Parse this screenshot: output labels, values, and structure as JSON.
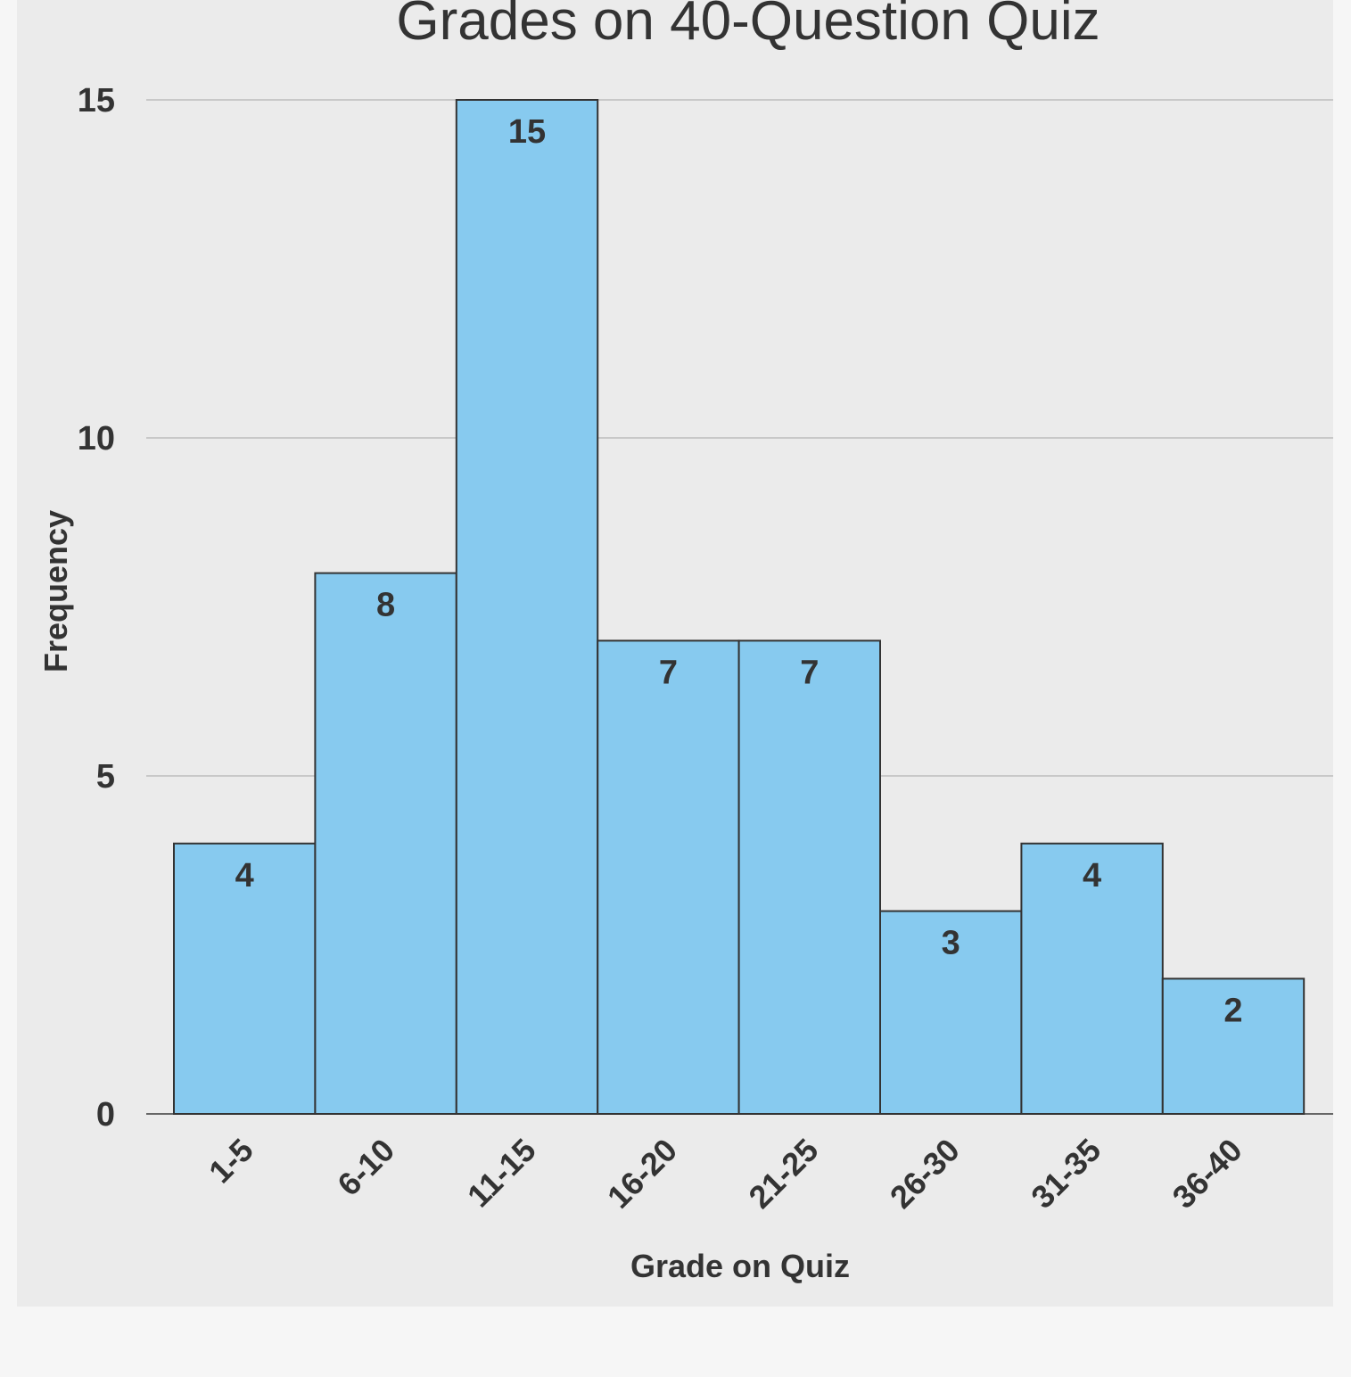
{
  "chart_data": {
    "type": "bar",
    "title": "Grades on 40-Question Quiz",
    "xlabel": "Grade on Quiz",
    "ylabel": "Frequency",
    "categories": [
      "1-5",
      "6-10",
      "11-15",
      "16-20",
      "21-25",
      "26-30",
      "31-35",
      "36-40"
    ],
    "values": [
      4,
      8,
      15,
      7,
      7,
      3,
      4,
      2
    ],
    "ylim": [
      0,
      15
    ],
    "yticks": [
      0,
      5,
      10,
      15
    ],
    "grid": true,
    "legend": "none",
    "colors": {
      "bar": "#87caef",
      "bar_stroke": "#333333",
      "grid": "#c8c8c8",
      "axis": "#666666",
      "text": "#333333",
      "panel": "#ebebeb",
      "page": "#f6f6f6"
    }
  }
}
